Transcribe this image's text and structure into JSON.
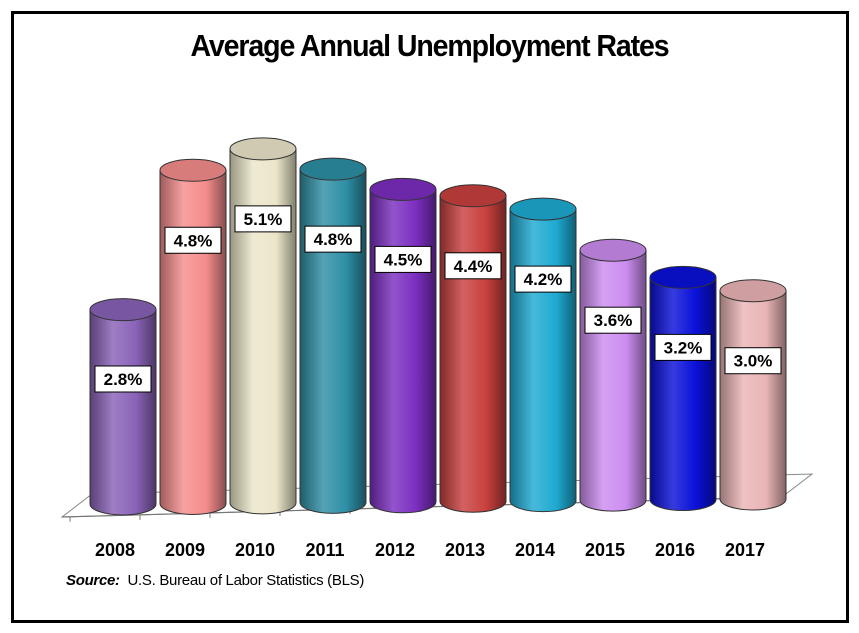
{
  "chart_data": {
    "type": "bar",
    "title": "Average Annual Unemployment Rates",
    "categories": [
      "2008",
      "2009",
      "2010",
      "2011",
      "2012",
      "2013",
      "2014",
      "2015",
      "2016",
      "2017"
    ],
    "values": [
      2.8,
      4.8,
      5.1,
      4.8,
      4.5,
      4.4,
      4.2,
      3.6,
      3.2,
      3.0
    ],
    "data_labels": [
      "2.8%",
      "4.8%",
      "5.1%",
      "4.8%",
      "4.5%",
      "4.4%",
      "4.2%",
      "3.6%",
      "3.2%",
      "3.0%"
    ],
    "colors": [
      "#8a62b8",
      "#f58c8c",
      "#ebe6c9",
      "#2e8fa5",
      "#7b2ec0",
      "#c8403e",
      "#1eaad2",
      "#cc8cf0",
      "#0a10d8",
      "#eab4b6"
    ],
    "xlabel": "",
    "ylabel": "",
    "ylim": [
      0,
      5.5
    ],
    "grid": false,
    "legend": "none",
    "style": "3d-cylinder"
  },
  "source": {
    "label": "Source:",
    "text": "U.S. Bureau of Labor Statistics (BLS)"
  }
}
